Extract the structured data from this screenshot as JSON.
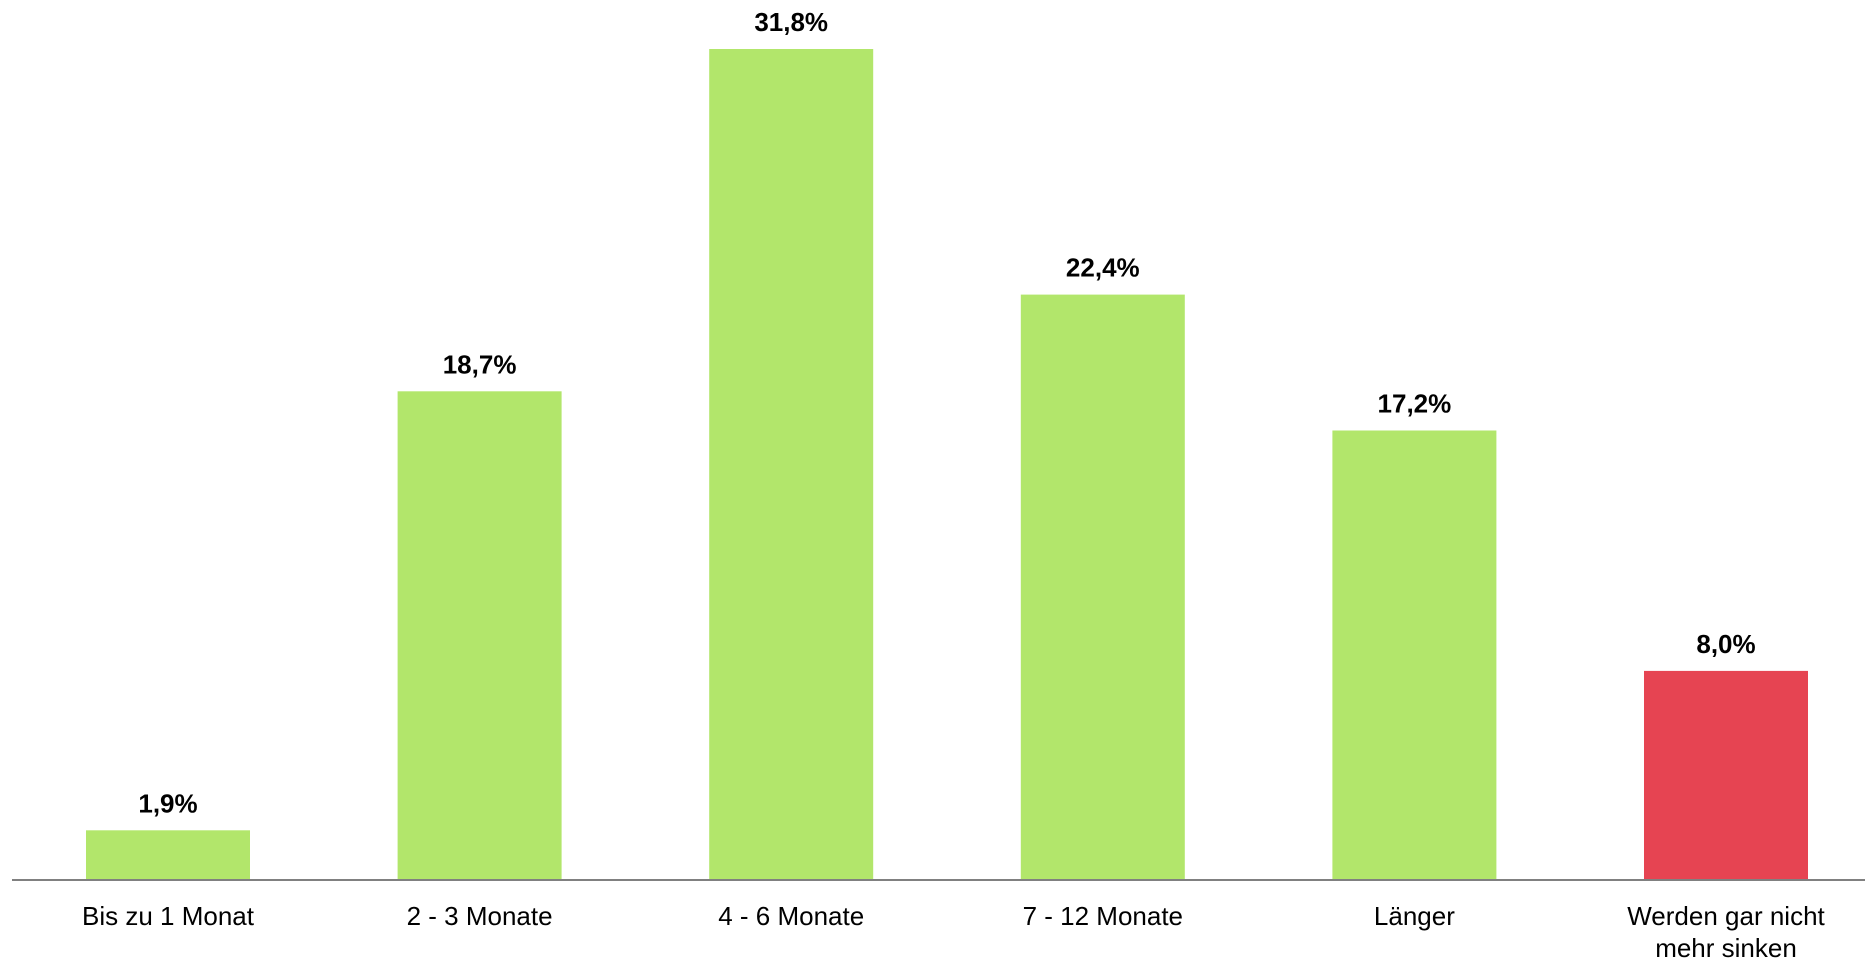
{
  "chart_data": {
    "type": "bar",
    "categories": [
      [
        "Bis zu 1 Monat"
      ],
      [
        "2 - 3 Monate"
      ],
      [
        "4 - 6 Monate"
      ],
      [
        "7 - 12 Monate"
      ],
      [
        "Länger"
      ],
      [
        "Werden gar nicht",
        "mehr sinken"
      ]
    ],
    "values": [
      1.9,
      18.7,
      31.8,
      22.4,
      17.2,
      8.0
    ],
    "value_labels": [
      "1,9%",
      "18,7%",
      "31,8%",
      "22,4%",
      "17,2%",
      "8,0%"
    ],
    "bar_colors": [
      "#b2e66b",
      "#b2e66b",
      "#b2e66b",
      "#b2e66b",
      "#b2e66b",
      "#e64452"
    ],
    "axis_color": "#808080",
    "title": "",
    "xlabel": "",
    "ylabel": "",
    "ylim": [
      0,
      31.8
    ],
    "grid": false,
    "legend": "none"
  }
}
